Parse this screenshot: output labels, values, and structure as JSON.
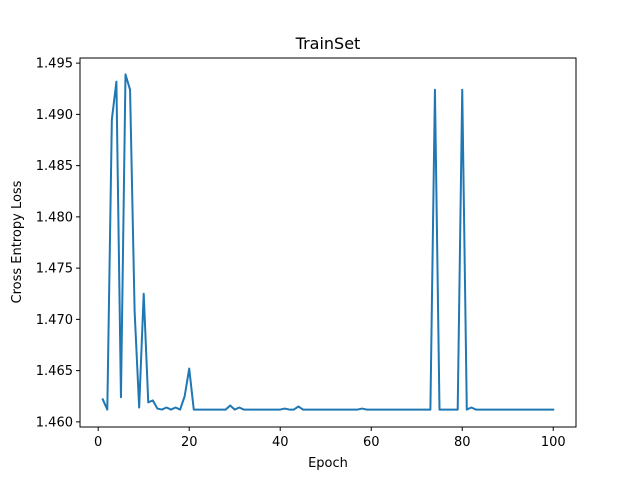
{
  "chart_data": {
    "type": "line",
    "title": "TrainSet",
    "xlabel": "Epoch",
    "ylabel": "Cross Entropy Loss",
    "xlim": [
      -4,
      105
    ],
    "ylim": [
      1.4595,
      1.4955
    ],
    "xticks": [
      0,
      20,
      40,
      60,
      80,
      100
    ],
    "yticks": [
      1.46,
      1.465,
      1.47,
      1.475,
      1.48,
      1.485,
      1.49,
      1.495
    ],
    "grid": false,
    "series_color": "#1f77b4",
    "series": [
      {
        "x": [
          1,
          2,
          3,
          4,
          5,
          6,
          7,
          8,
          9,
          10,
          11,
          12,
          13,
          14,
          15,
          16,
          17,
          18,
          19,
          20,
          21,
          22,
          23,
          24,
          25,
          26,
          27,
          28,
          29,
          30,
          31,
          32,
          33,
          34,
          35,
          36,
          37,
          38,
          39,
          40,
          41,
          42,
          43,
          44,
          45,
          46,
          47,
          48,
          49,
          50,
          51,
          52,
          53,
          54,
          55,
          56,
          57,
          58,
          59,
          60,
          61,
          62,
          63,
          64,
          65,
          66,
          67,
          68,
          69,
          70,
          71,
          72,
          73,
          74,
          75,
          76,
          77,
          78,
          79,
          80,
          81,
          82,
          83,
          84,
          85,
          86,
          87,
          88,
          89,
          90,
          91,
          92,
          93,
          94,
          95,
          96,
          97,
          98,
          99,
          100
        ],
        "values": [
          1.4622,
          1.4612,
          1.4895,
          1.4932,
          1.4624,
          1.4939,
          1.4924,
          1.4708,
          1.4614,
          1.4725,
          1.4619,
          1.4621,
          1.4613,
          1.4612,
          1.4614,
          1.4612,
          1.4614,
          1.4612,
          1.4625,
          1.4652,
          1.4612,
          1.4612,
          1.4612,
          1.4612,
          1.4612,
          1.4612,
          1.4612,
          1.4612,
          1.4616,
          1.4612,
          1.4614,
          1.4612,
          1.4612,
          1.4612,
          1.4612,
          1.4612,
          1.4612,
          1.4612,
          1.4612,
          1.4612,
          1.4613,
          1.4612,
          1.4612,
          1.4615,
          1.4612,
          1.4612,
          1.4612,
          1.4612,
          1.4612,
          1.4612,
          1.4612,
          1.4612,
          1.4612,
          1.4612,
          1.4612,
          1.4612,
          1.4612,
          1.4613,
          1.4612,
          1.4612,
          1.4612,
          1.4612,
          1.4612,
          1.4612,
          1.4612,
          1.4612,
          1.4612,
          1.4612,
          1.4612,
          1.4612,
          1.4612,
          1.4612,
          1.4612,
          1.4924,
          1.4612,
          1.4612,
          1.4612,
          1.4612,
          1.4612,
          1.4924,
          1.4612,
          1.4614,
          1.4612,
          1.4612,
          1.4612,
          1.4612,
          1.4612,
          1.4612,
          1.4612,
          1.4612,
          1.4612,
          1.4612,
          1.4612,
          1.4612,
          1.4612,
          1.4612,
          1.4612,
          1.4612,
          1.4612,
          1.4612
        ]
      }
    ]
  }
}
